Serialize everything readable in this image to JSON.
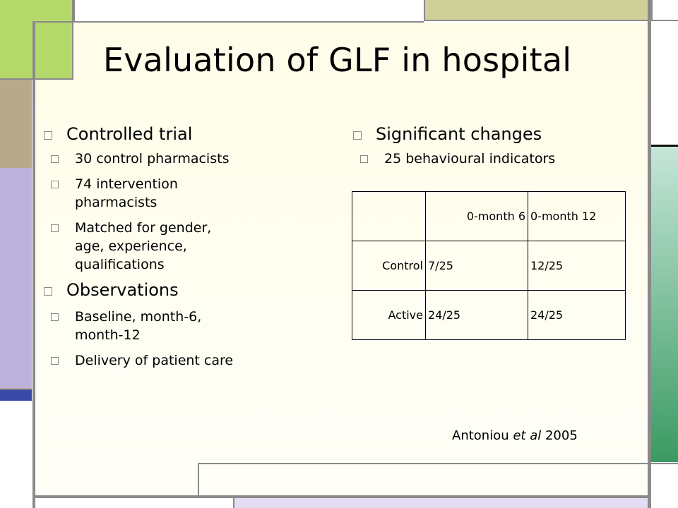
{
  "slide": {
    "title": "Evaluation of GLF in hospital",
    "left_column": [
      {
        "text": "Controlled trial",
        "sub": [
          {
            "lines": [
              "30 control pharmacists"
            ]
          },
          {
            "lines": [
              "74 intervention",
              "pharmacists"
            ]
          },
          {
            "lines": [
              "Matched for gender,",
              "age, experience,",
              "qualifications"
            ]
          }
        ]
      },
      {
        "text": "Observations",
        "sub": [
          {
            "lines": [
              "Baseline, month-6,",
              "month-12"
            ]
          },
          {
            "lines": [
              "Delivery of patient care"
            ]
          }
        ]
      }
    ],
    "right_column": [
      {
        "text": "Significant changes",
        "sub": [
          {
            "lines": [
              "25 behavioural indicators"
            ]
          }
        ]
      }
    ],
    "table": {
      "headers": [
        "",
        "0-month 6",
        "0-month 12"
      ],
      "rows": [
        [
          "Control",
          "7/25",
          "12/25"
        ],
        [
          "Active",
          "24/25",
          "24/25"
        ]
      ]
    },
    "citation": {
      "author": "Antoniou ",
      "etal": "et al",
      "year": " 2005"
    }
  },
  "colors": {
    "slide_bg_top": "#fffde8",
    "slide_bg_bottom": "#fffff8",
    "border_gray": "#888888",
    "green_block": "#b5d86a",
    "tan_block": "#b7aa8a",
    "lavender_block": "#bdb1de",
    "olive_block": "#cfcf9a",
    "teal_gradient_top": "#c5e6d8",
    "teal_gradient_bottom": "#3a9a62",
    "lilac_strip": "#e4dcf3",
    "blue_accent": "#3b4aa6",
    "bullet_box": "#8a8a8a"
  }
}
